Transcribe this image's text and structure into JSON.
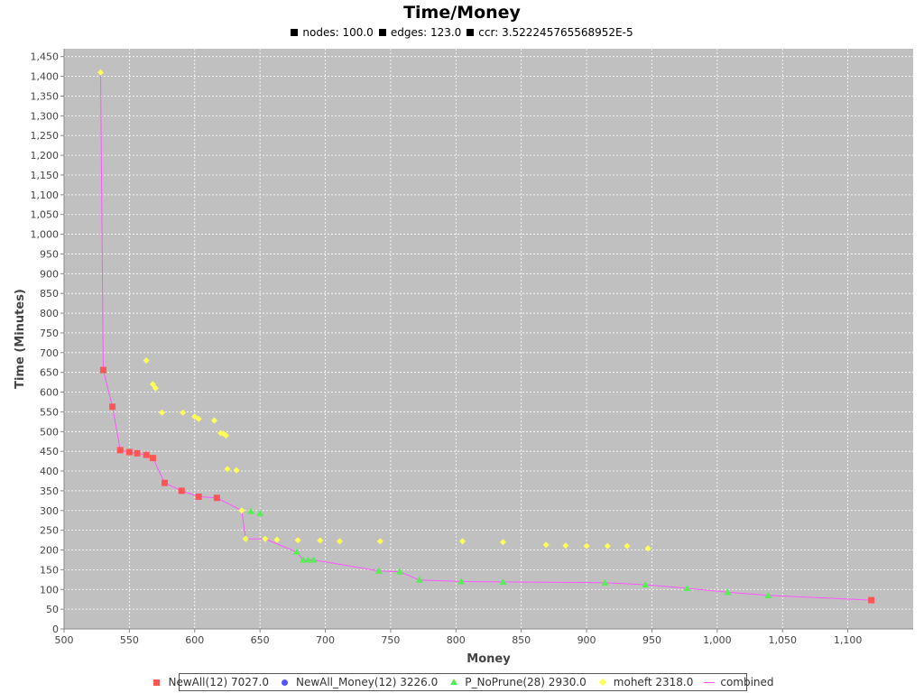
{
  "chart_data": {
    "type": "scatter",
    "title": "Time/Money",
    "subtitle_items": [
      {
        "label": "nodes: 100.0"
      },
      {
        "label": "edges: 123.0"
      },
      {
        "label": "ccr: 3.522245765568952E-5"
      }
    ],
    "xlabel": "Money",
    "ylabel": "Time (Minutes)",
    "xlim": [
      500,
      1150
    ],
    "ylim": [
      0,
      1470
    ],
    "xticks": [
      500,
      550,
      600,
      650,
      700,
      750,
      800,
      850,
      900,
      950,
      1000,
      1050,
      1100
    ],
    "xtick_labels": [
      "500",
      "550",
      "600",
      "650",
      "700",
      "750",
      "800",
      "850",
      "900",
      "950",
      "1,000",
      "1,050",
      "1,100"
    ],
    "yticks": [
      0,
      50,
      100,
      150,
      200,
      250,
      300,
      350,
      400,
      450,
      500,
      550,
      600,
      650,
      700,
      750,
      800,
      850,
      900,
      950,
      1000,
      1050,
      1100,
      1150,
      1200,
      1250,
      1300,
      1350,
      1400,
      1450
    ],
    "ytick_labels": [
      "0",
      "50",
      "100",
      "150",
      "200",
      "250",
      "300",
      "350",
      "400",
      "450",
      "500",
      "550",
      "600",
      "650",
      "700",
      "750",
      "800",
      "850",
      "900",
      "950",
      "1,000",
      "1,050",
      "1,100",
      "1,150",
      "1,200",
      "1,250",
      "1,300",
      "1,350",
      "1,400",
      "1,450"
    ],
    "grid": true,
    "background": "#c0c0c0",
    "legend_position": "bottom",
    "series": [
      {
        "name": "NewAll(12) 7027.0",
        "marker": "square",
        "color": "#ff5555",
        "points": [
          [
            530,
            656
          ],
          [
            537,
            563
          ],
          [
            543,
            453
          ],
          [
            550,
            448
          ],
          [
            556,
            445
          ],
          [
            563,
            441
          ],
          [
            568,
            433
          ],
          [
            577,
            370
          ],
          [
            590,
            350
          ],
          [
            603,
            335
          ],
          [
            617,
            332
          ],
          [
            1118,
            73
          ]
        ]
      },
      {
        "name": "NewAll_Money(12) 3226.0",
        "marker": "circle",
        "color": "#5555ff",
        "points": []
      },
      {
        "name": "P_NoPrune(28) 2930.0",
        "marker": "triangle",
        "color": "#55ee55",
        "points": [
          [
            643,
            298
          ],
          [
            650,
            293
          ],
          [
            678,
            195
          ],
          [
            683,
            175
          ],
          [
            687,
            175
          ],
          [
            691,
            175
          ],
          [
            741,
            147
          ],
          [
            757,
            145
          ],
          [
            772,
            124
          ],
          [
            804,
            120
          ],
          [
            836,
            119
          ],
          [
            914,
            117
          ],
          [
            945,
            112
          ],
          [
            977,
            103
          ],
          [
            1008,
            93
          ],
          [
            1039,
            85
          ]
        ]
      },
      {
        "name": "moheft 2318.0",
        "marker": "diamond",
        "color": "#ffff55",
        "points": [
          [
            528,
            1410
          ],
          [
            563,
            680
          ],
          [
            568,
            620
          ],
          [
            570,
            610
          ],
          [
            575,
            548
          ],
          [
            591,
            548
          ],
          [
            600,
            538
          ],
          [
            603,
            532
          ],
          [
            615,
            528
          ],
          [
            620,
            496
          ],
          [
            622,
            495
          ],
          [
            624,
            490
          ],
          [
            625,
            405
          ],
          [
            632,
            402
          ],
          [
            636,
            300
          ],
          [
            639,
            228
          ],
          [
            654,
            228
          ],
          [
            663,
            226
          ],
          [
            679,
            225
          ],
          [
            696,
            224
          ],
          [
            711,
            222
          ],
          [
            742,
            222
          ],
          [
            805,
            222
          ],
          [
            836,
            220
          ],
          [
            869,
            213
          ],
          [
            884,
            211
          ],
          [
            900,
            210
          ],
          [
            916,
            210
          ],
          [
            931,
            210
          ],
          [
            947,
            204
          ]
        ]
      },
      {
        "name": "combined",
        "marker": "line",
        "color": "#ff55ff",
        "points": [
          [
            528,
            1410
          ],
          [
            530,
            656
          ],
          [
            537,
            563
          ],
          [
            543,
            453
          ],
          [
            550,
            448
          ],
          [
            556,
            445
          ],
          [
            563,
            441
          ],
          [
            568,
            433
          ],
          [
            577,
            370
          ],
          [
            590,
            350
          ],
          [
            603,
            335
          ],
          [
            617,
            332
          ],
          [
            636,
            300
          ],
          [
            639,
            228
          ],
          [
            654,
            228
          ],
          [
            678,
            195
          ],
          [
            683,
            175
          ],
          [
            691,
            175
          ],
          [
            741,
            147
          ],
          [
            757,
            145
          ],
          [
            772,
            124
          ],
          [
            804,
            120
          ],
          [
            836,
            119
          ],
          [
            914,
            117
          ],
          [
            945,
            112
          ],
          [
            977,
            103
          ],
          [
            1008,
            93
          ],
          [
            1039,
            85
          ],
          [
            1118,
            73
          ]
        ]
      }
    ]
  }
}
